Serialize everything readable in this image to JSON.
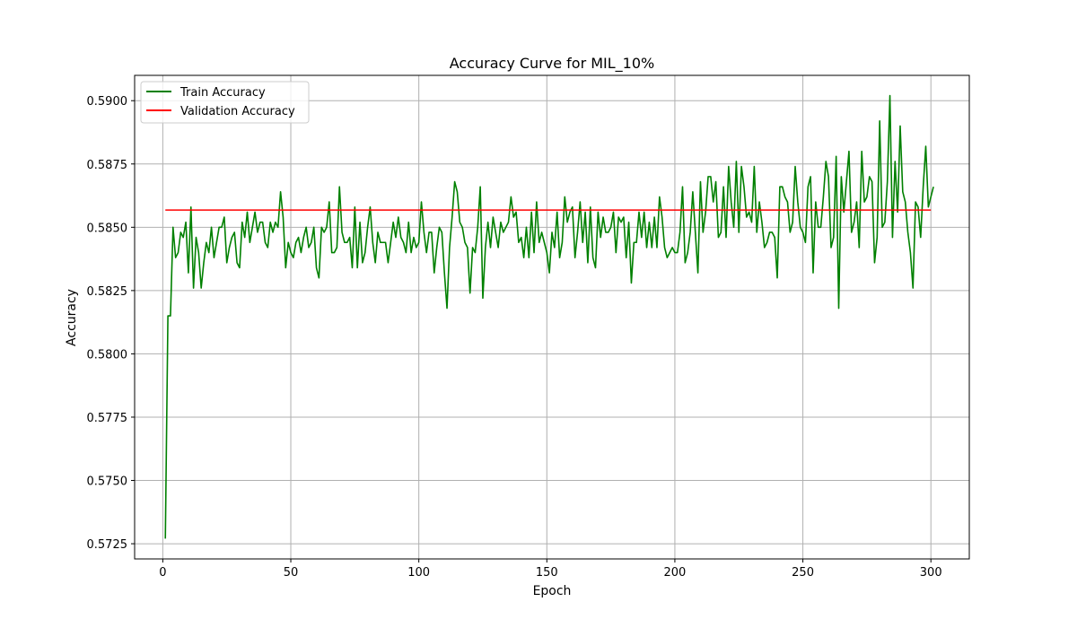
{
  "chart_data": {
    "type": "line",
    "title": "Accuracy Curve for MIL_10%",
    "xlabel": "Epoch",
    "ylabel": "Accuracy",
    "xlim": [
      -11,
      315
    ],
    "ylim": [
      0.5719,
      0.591
    ],
    "xticks": [
      0,
      50,
      100,
      150,
      200,
      250,
      300
    ],
    "yticks": [
      0.5725,
      0.575,
      0.5775,
      0.58,
      0.5825,
      0.585,
      0.5875,
      0.59
    ],
    "ytick_labels": [
      "0.5725",
      "0.5750",
      "0.5775",
      "0.5800",
      "0.5825",
      "0.5850",
      "0.5875",
      "0.5900"
    ],
    "grid": true,
    "legend_position": "upper-left",
    "series": [
      {
        "name": "Train Accuracy",
        "color": "#008000",
        "x_start": 1,
        "x_step": 1,
        "values": [
          0.5727,
          0.5815,
          0.5815,
          0.585,
          0.5838,
          0.584,
          0.5848,
          0.5846,
          0.5852,
          0.5832,
          0.5858,
          0.5826,
          0.5846,
          0.584,
          0.5826,
          0.5836,
          0.5844,
          0.584,
          0.585,
          0.5838,
          0.5844,
          0.585,
          0.585,
          0.5854,
          0.5836,
          0.5842,
          0.5846,
          0.5848,
          0.5836,
          0.5834,
          0.5852,
          0.5846,
          0.5856,
          0.5844,
          0.585,
          0.5856,
          0.5848,
          0.5852,
          0.5852,
          0.5844,
          0.5842,
          0.5852,
          0.5848,
          0.5852,
          0.585,
          0.5864,
          0.5854,
          0.5834,
          0.5844,
          0.584,
          0.5838,
          0.5844,
          0.5846,
          0.584,
          0.5846,
          0.585,
          0.5842,
          0.5844,
          0.585,
          0.5834,
          0.583,
          0.585,
          0.5848,
          0.585,
          0.586,
          0.584,
          0.584,
          0.5842,
          0.5866,
          0.5848,
          0.5844,
          0.5844,
          0.5846,
          0.5834,
          0.5858,
          0.5834,
          0.5852,
          0.5836,
          0.584,
          0.585,
          0.5858,
          0.5844,
          0.5836,
          0.5848,
          0.5844,
          0.5844,
          0.5844,
          0.5836,
          0.5844,
          0.5852,
          0.5846,
          0.5854,
          0.5846,
          0.5844,
          0.584,
          0.5852,
          0.584,
          0.5846,
          0.5842,
          0.5844,
          0.586,
          0.5848,
          0.584,
          0.5848,
          0.5848,
          0.5832,
          0.5842,
          0.585,
          0.5848,
          0.5832,
          0.5818,
          0.5842,
          0.5854,
          0.5868,
          0.5864,
          0.5852,
          0.585,
          0.5844,
          0.5842,
          0.5824,
          0.5842,
          0.584,
          0.585,
          0.5866,
          0.5822,
          0.5842,
          0.5852,
          0.5842,
          0.5854,
          0.5848,
          0.5842,
          0.5852,
          0.5848,
          0.585,
          0.5852,
          0.5862,
          0.5854,
          0.5856,
          0.5844,
          0.5846,
          0.5838,
          0.585,
          0.5838,
          0.5856,
          0.584,
          0.586,
          0.5844,
          0.5848,
          0.5844,
          0.584,
          0.5832,
          0.5848,
          0.5842,
          0.5856,
          0.5838,
          0.5844,
          0.5862,
          0.5852,
          0.5856,
          0.5858,
          0.5838,
          0.5848,
          0.586,
          0.5844,
          0.5856,
          0.5836,
          0.5858,
          0.5838,
          0.5834,
          0.5856,
          0.5846,
          0.5854,
          0.5848,
          0.5848,
          0.585,
          0.5856,
          0.584,
          0.5854,
          0.5852,
          0.5854,
          0.5838,
          0.5852,
          0.5828,
          0.5844,
          0.5844,
          0.5856,
          0.5846,
          0.5856,
          0.5842,
          0.5852,
          0.5842,
          0.5854,
          0.5842,
          0.5862,
          0.5854,
          0.5842,
          0.5838,
          0.584,
          0.5842,
          0.584,
          0.584,
          0.5848,
          0.5866,
          0.5836,
          0.584,
          0.5848,
          0.5864,
          0.5848,
          0.5832,
          0.5868,
          0.5848,
          0.5856,
          0.587,
          0.587,
          0.586,
          0.5868,
          0.5846,
          0.5848,
          0.5866,
          0.5846,
          0.5874,
          0.586,
          0.585,
          0.5876,
          0.5848,
          0.5874,
          0.5866,
          0.5854,
          0.5856,
          0.5852,
          0.5874,
          0.5848,
          0.586,
          0.5852,
          0.5842,
          0.5844,
          0.5848,
          0.5848,
          0.5846,
          0.583,
          0.5866,
          0.5866,
          0.5862,
          0.586,
          0.5848,
          0.5852,
          0.5874,
          0.586,
          0.585,
          0.5848,
          0.5844,
          0.5866,
          0.587,
          0.5832,
          0.586,
          0.585,
          0.585,
          0.5862,
          0.5876,
          0.587,
          0.5842,
          0.5846,
          0.5878,
          0.5818,
          0.587,
          0.5856,
          0.5868,
          0.588,
          0.5848,
          0.5852,
          0.586,
          0.5842,
          0.588,
          0.586,
          0.5862,
          0.587,
          0.5868,
          0.5836,
          0.5846,
          0.5892,
          0.585,
          0.5852,
          0.5868,
          0.5902,
          0.5846,
          0.5876,
          0.5856,
          0.589,
          0.5864,
          0.586,
          0.5848,
          0.584,
          0.5826,
          0.586,
          0.5858,
          0.5846,
          0.5866,
          0.5882,
          0.5858,
          0.5862,
          0.5866
        ]
      },
      {
        "name": "Validation Accuracy",
        "color": "#ff0000",
        "x": [
          1,
          300
        ],
        "values": [
          0.58568,
          0.58568
        ]
      }
    ]
  }
}
